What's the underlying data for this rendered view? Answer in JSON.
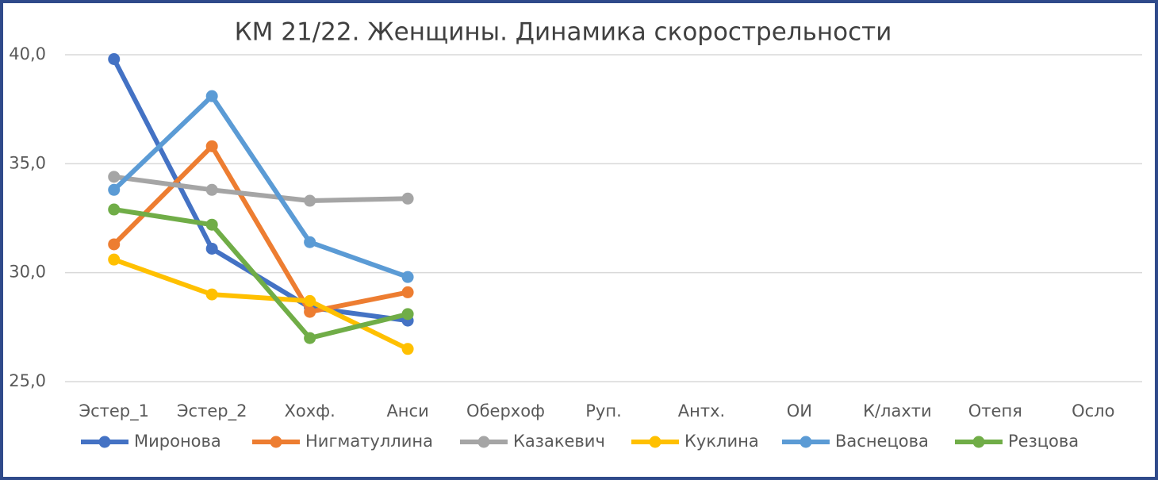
{
  "chart_data": {
    "type": "line",
    "title": "КМ 21/22. Женщины. Динамика скорострельности",
    "categories": [
      "Эстер_1",
      "Эстер_2",
      "Хохф.",
      "Анси",
      "Оберхоф",
      "Руп.",
      "Антх.",
      "ОИ",
      "К/лахти",
      "Отепя",
      "Осло"
    ],
    "series": [
      {
        "name": "Миронова",
        "color": "#4472c4",
        "values": [
          39.8,
          31.1,
          28.4,
          27.8,
          null,
          null,
          null,
          null,
          null,
          null,
          null
        ]
      },
      {
        "name": "Нигматуллина",
        "color": "#ed7d31",
        "values": [
          31.3,
          35.8,
          28.2,
          29.1,
          null,
          null,
          null,
          null,
          null,
          null,
          null
        ]
      },
      {
        "name": "Казакевич",
        "color": "#a5a5a5",
        "values": [
          34.4,
          33.8,
          33.3,
          33.4,
          null,
          null,
          null,
          null,
          null,
          null,
          null
        ]
      },
      {
        "name": "Куклина",
        "color": "#ffc000",
        "values": [
          30.6,
          29.0,
          28.7,
          26.5,
          null,
          null,
          null,
          null,
          null,
          null,
          null
        ]
      },
      {
        "name": "Васнецова",
        "color": "#5b9bd5",
        "values": [
          33.8,
          38.1,
          31.4,
          29.8,
          null,
          null,
          null,
          null,
          null,
          null,
          null
        ]
      },
      {
        "name": "Резцова",
        "color": "#70ad47",
        "values": [
          32.9,
          32.2,
          27.0,
          28.1,
          null,
          null,
          null,
          null,
          null,
          null,
          null
        ]
      }
    ],
    "ylim": [
      25,
      40
    ],
    "yticks": [
      {
        "value": 25,
        "label": "25,0"
      },
      {
        "value": 30,
        "label": "30,0"
      },
      {
        "value": 35,
        "label": "35,0"
      },
      {
        "value": 40,
        "label": "40,0"
      }
    ],
    "grid": true,
    "legend": "bottom"
  }
}
